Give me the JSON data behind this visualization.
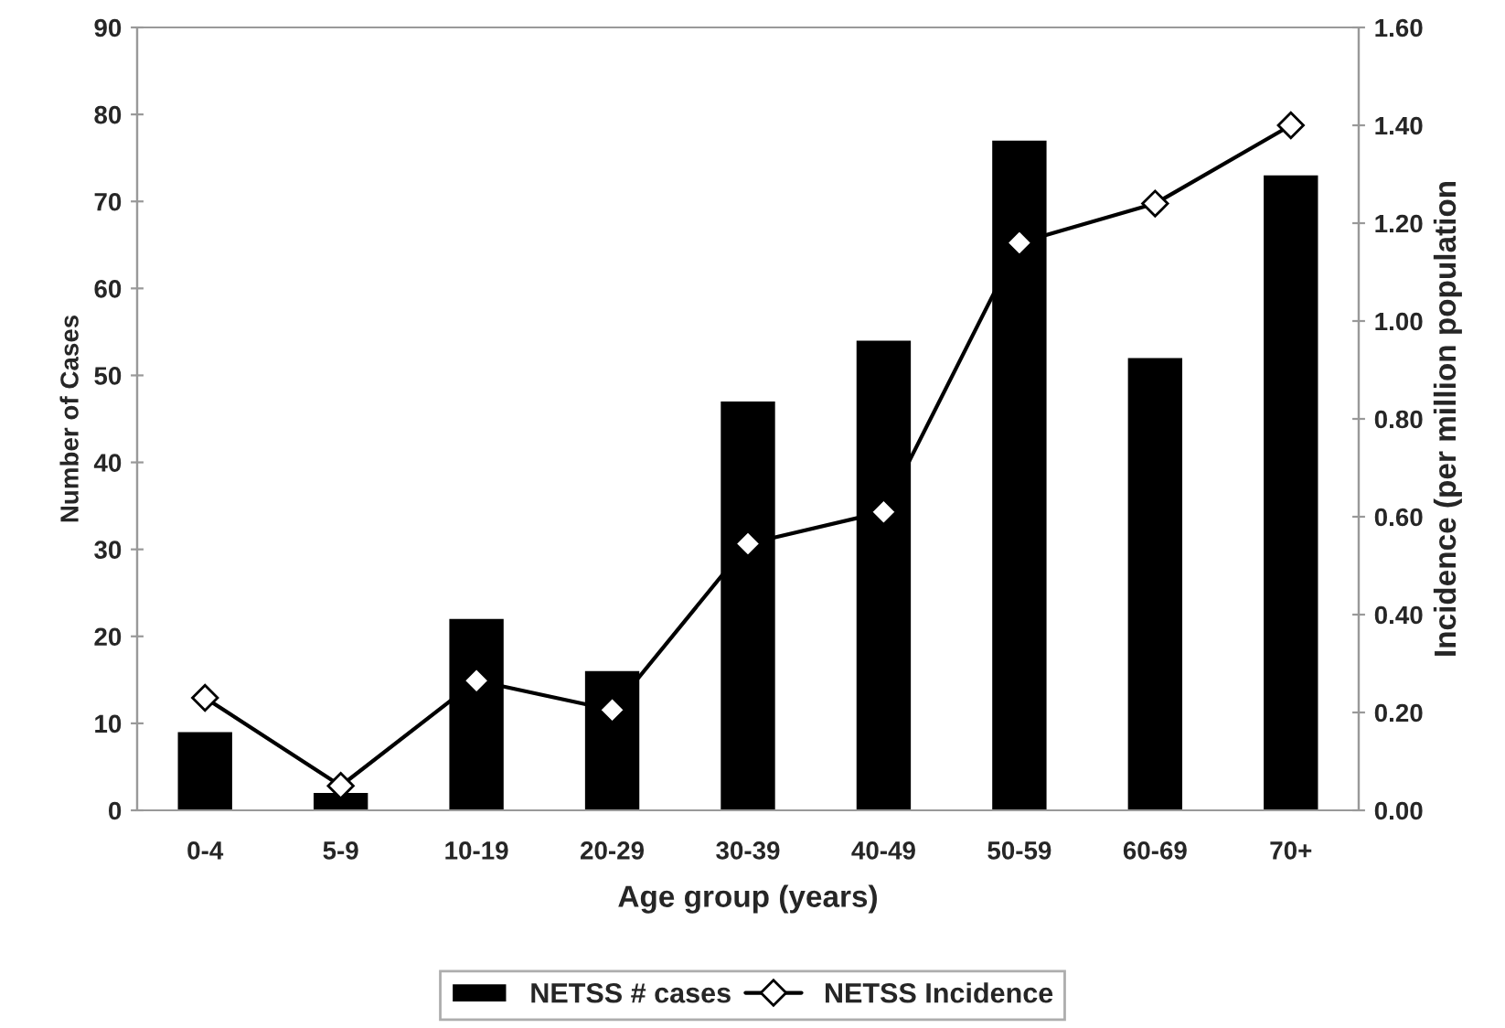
{
  "chart_data": {
    "type": "bar",
    "xlabel": "Age group (years)",
    "ylabel": "Number of Cases",
    "y2label": "Incidence (per million population",
    "categories": [
      "0-4",
      "5-9",
      "10-19",
      "20-29",
      "30-39",
      "40-49",
      "50-59",
      "60-69",
      "70+"
    ],
    "series": [
      {
        "name": "NETSS # cases",
        "color": "#000000",
        "values": [
          9,
          2,
          22,
          16,
          47,
          54,
          77,
          52,
          73
        ]
      },
      {
        "name": "NETSS Incidence",
        "type": "line",
        "axis": "y2",
        "color": "#000000",
        "marker": "diamond",
        "values": [
          0.23,
          0.05,
          0.265,
          0.205,
          0.545,
          0.61,
          1.16,
          1.24,
          1.4
        ]
      }
    ],
    "ylim": [
      0,
      90
    ],
    "yticks": [
      0,
      10,
      20,
      30,
      40,
      50,
      60,
      70,
      80,
      90
    ],
    "y2lim": [
      0,
      1.6
    ],
    "y2ticks": [
      {
        "value": 0,
        "label": "0.00"
      },
      {
        "value": 0.2,
        "label": "0.20"
      },
      {
        "value": 0.4,
        "label": "0.40"
      },
      {
        "value": 0.6,
        "label": "0.60"
      },
      {
        "value": 0.8,
        "label": "0.80"
      },
      {
        "value": 1.0,
        "label": "1.00"
      },
      {
        "value": 1.2,
        "label": "1.20"
      },
      {
        "value": 1.4,
        "label": "1.40"
      },
      {
        "value": 1.6,
        "label": "1.60"
      }
    ],
    "legend": "bottom",
    "grid": false
  }
}
